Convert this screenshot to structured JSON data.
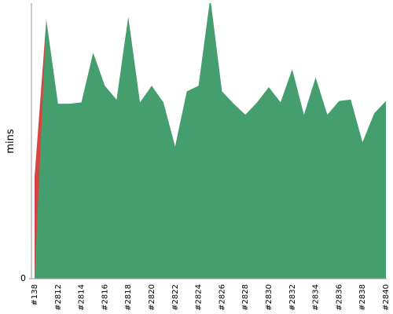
{
  "chart_data": {
    "type": "area",
    "y_label": "mins",
    "categories": [
      "#138",
      null,
      "#2812",
      null,
      "#2814",
      null,
      "#2816",
      null,
      "#2818",
      null,
      "#2820",
      null,
      "#2822",
      null,
      "#2824",
      null,
      "#2826",
      null,
      "#2828",
      null,
      "#2830",
      null,
      "#2832",
      null,
      "#2834",
      null,
      "#2836",
      null,
      "#2838",
      null,
      "#2840"
    ],
    "series": [
      {
        "color": "#d64541",
        "values": [
          37,
          94,
          null,
          null,
          null,
          null,
          null,
          null,
          null,
          null,
          null,
          null,
          null,
          null,
          null,
          null,
          null,
          null,
          null,
          null,
          null,
          null,
          null,
          null,
          null,
          null,
          null,
          null,
          null,
          null,
          null
        ]
      },
      {
        "color": "#459e6e",
        "values": [
          0,
          94,
          63.5,
          63.5,
          64,
          82,
          70,
          65,
          95,
          64,
          70,
          64,
          48,
          68,
          70,
          102,
          68,
          63.5,
          59.5,
          64,
          69.5,
          64,
          76,
          59.5,
          73,
          59.5,
          64.5,
          65,
          49.5,
          60,
          64.5
        ]
      }
    ],
    "ylim": [
      0,
      100
    ],
    "yticks": [
      0
    ]
  }
}
